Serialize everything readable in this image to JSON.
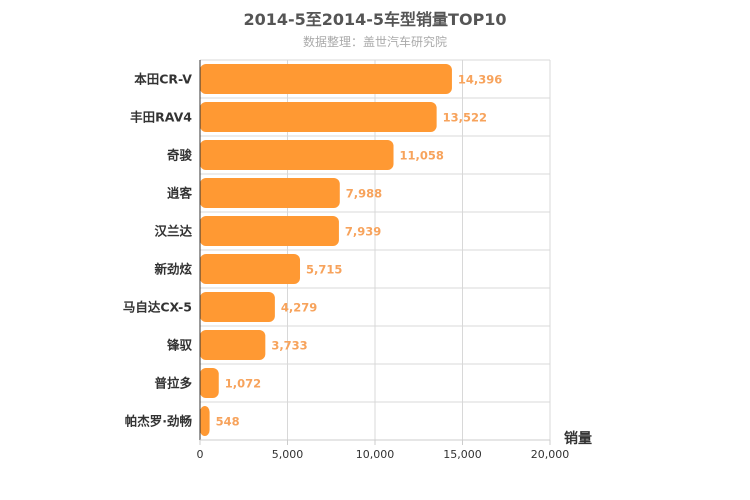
{
  "title": "2014-5至2014-5车型销量TOP10",
  "subtitle": "数据整理：盖世汽车研究院",
  "colors": {
    "bar": "#ff9933",
    "value_label": "#f7a35c",
    "grid": "#d8d8d8",
    "axis": "#333333"
  },
  "chart_data": {
    "type": "bar",
    "orientation": "horizontal",
    "title": "2014-5至2014-5车型销量TOP10",
    "subtitle": "数据整理：盖世汽车研究院",
    "categories": [
      "本田CR-V",
      "丰田RAV4",
      "奇骏",
      "逍客",
      "汉兰达",
      "新劲炫",
      "马自达CX-5",
      "锋驭",
      "普拉多",
      "帕杰罗·劲畅"
    ],
    "values": [
      14396,
      13522,
      11058,
      7988,
      7939,
      5715,
      4279,
      3733,
      1072,
      548
    ],
    "value_labels": [
      "14,396",
      "13,522",
      "11,058",
      "7,988",
      "7,939",
      "5,715",
      "4,279",
      "3,733",
      "1,072",
      "548"
    ],
    "xlabel": "销量",
    "ylabel": "",
    "xlim": [
      0,
      20000
    ],
    "ticks": [
      0,
      5000,
      10000,
      15000,
      20000
    ],
    "tick_labels": [
      "0",
      "5,000",
      "10,000",
      "15,000",
      "20,000"
    ],
    "grid": true,
    "legend": false
  }
}
